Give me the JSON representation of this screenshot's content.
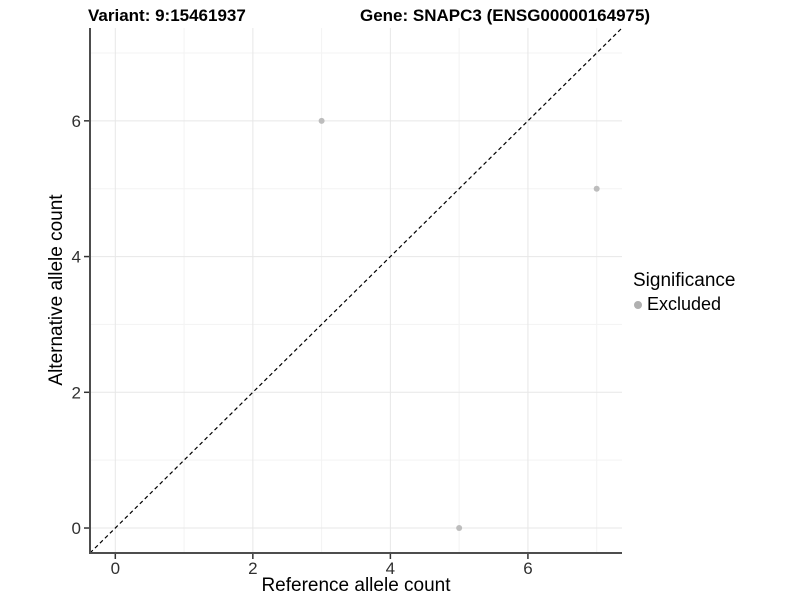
{
  "chart_data": {
    "type": "scatter",
    "titles": {
      "left": "Variant: 9:15461937",
      "right": "Gene: SNAPC3 (ENSG00000164975)"
    },
    "xlabel": "Reference allele count",
    "ylabel": "Alternative allele count",
    "xlim": [
      -0.368,
      7.368
    ],
    "ylim": [
      -0.368,
      7.368
    ],
    "xticks": [
      0,
      2,
      4,
      6
    ],
    "yticks": [
      0,
      2,
      4,
      6
    ],
    "xticks_minor": [
      1,
      3,
      5,
      7
    ],
    "yticks_minor": [
      1,
      3,
      5,
      7
    ],
    "grid": true,
    "legend_position": "right",
    "identity_line": {
      "show": true,
      "style": "dashed",
      "color": "#000000",
      "dash": "4 3"
    },
    "series": [
      {
        "name": "Excluded",
        "color": "#bdbdbd",
        "points": [
          {
            "x": 3,
            "y": 6
          },
          {
            "x": 7,
            "y": 5
          },
          {
            "x": 5,
            "y": 0
          }
        ]
      }
    ],
    "legend": {
      "title": "Significance",
      "entries": [
        {
          "label": "Excluded",
          "color": "#b0b0b0"
        }
      ]
    },
    "colors": {
      "axis_line": "#4d4d4d",
      "tick_mark": "#333333",
      "tick_label": "#303030",
      "grid_major": "#e7e7e7",
      "grid_minor": "#f3f3f3",
      "background": "#ffffff"
    }
  }
}
